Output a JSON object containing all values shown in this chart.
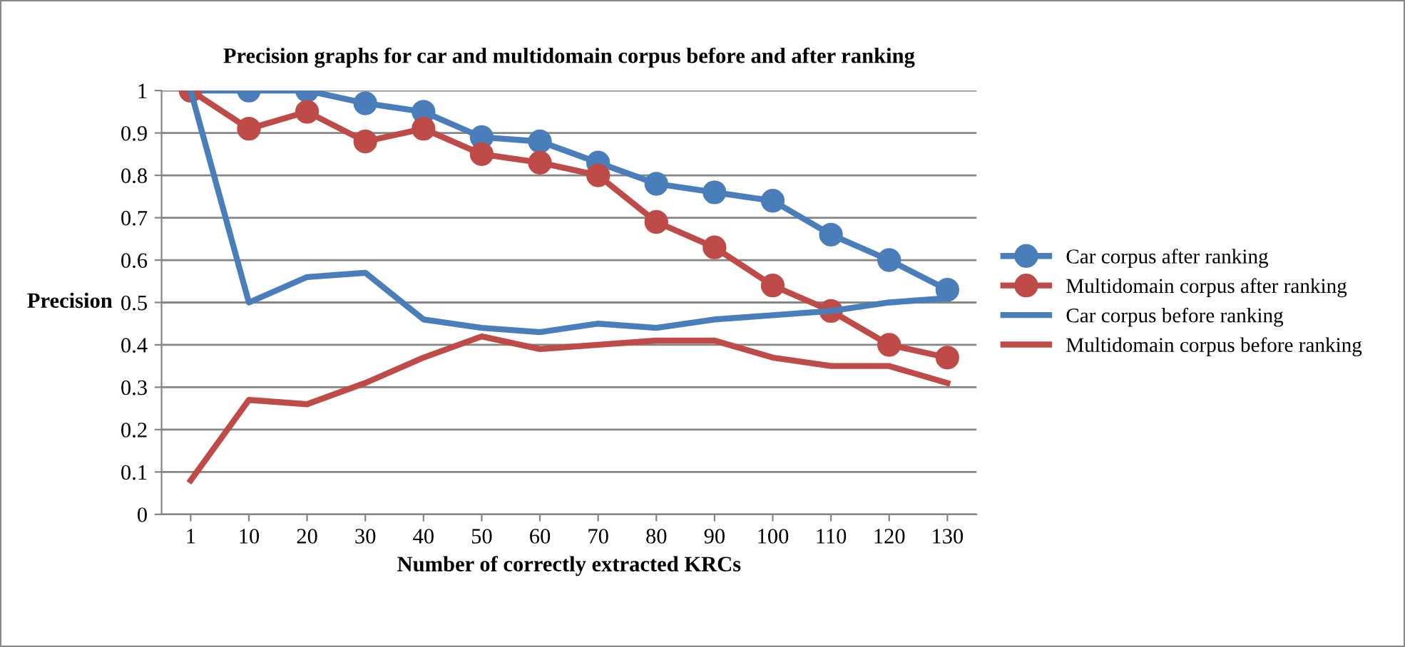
{
  "chart_data": {
    "type": "line",
    "title": "Precision graphs for car and multidomain corpus before and after ranking",
    "xlabel": "Number of correctly extracted KRCs",
    "ylabel": "Precision",
    "categories": [
      "1",
      "10",
      "20",
      "30",
      "40",
      "50",
      "60",
      "70",
      "80",
      "90",
      "100",
      "110",
      "120",
      "130"
    ],
    "series": [
      {
        "name": "Car corpus after ranking",
        "color": "#4a7ebb",
        "marker": "circle",
        "values": [
          1,
          1,
          1,
          0.97,
          0.95,
          0.89,
          0.88,
          0.83,
          0.78,
          0.76,
          0.74,
          0.66,
          0.6,
          0.53
        ]
      },
      {
        "name": "Multidomain corpus after ranking",
        "color": "#be4b48",
        "marker": "circle",
        "values": [
          1,
          0.91,
          0.95,
          0.88,
          0.91,
          0.85,
          0.83,
          0.8,
          0.69,
          0.63,
          0.54,
          0.48,
          0.4,
          0.37
        ]
      },
      {
        "name": "Car corpus before ranking",
        "color": "#4a7ebb",
        "marker": "none",
        "values": [
          1,
          0.5,
          0.56,
          0.57,
          0.46,
          0.44,
          0.43,
          0.45,
          0.44,
          0.46,
          0.47,
          0.48,
          0.5,
          0.51
        ]
      },
      {
        "name": "Multidomain corpus before ranking",
        "color": "#be4b48",
        "marker": "none",
        "values": [
          0.08,
          0.27,
          0.26,
          0.31,
          0.37,
          0.42,
          0.39,
          0.4,
          0.41,
          0.41,
          0.37,
          0.35,
          0.35,
          0.31
        ]
      }
    ],
    "ylim": [
      0,
      1
    ],
    "yticks": [
      0,
      0.1,
      0.2,
      0.3,
      0.4,
      0.5,
      0.6,
      0.7,
      0.8,
      0.9,
      1
    ],
    "grid": "y",
    "legend": "right",
    "line_style": "solid"
  }
}
